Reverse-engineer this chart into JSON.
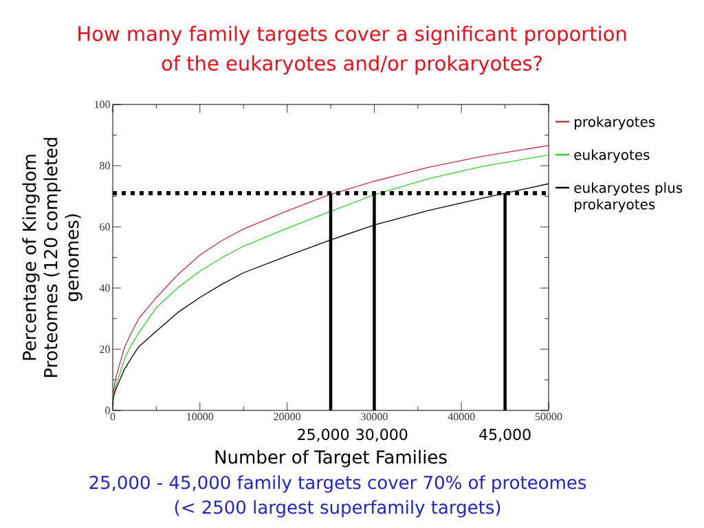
{
  "chart_data": {
    "type": "line",
    "title": "How many family targets cover a significant proportion of the eukaryotes and/or prokaryotes?",
    "xlabel": "Number of Target Families",
    "ylabel": "Percentage of Kingdom Proteomes (120 completed genomes)",
    "x": [
      0,
      80,
      340,
      1330,
      2150,
      2970,
      5000,
      7500,
      10000,
      12500,
      15000,
      20000,
      24740,
      30100,
      36300,
      42300,
      50000
    ],
    "series": [
      {
        "name": "prokaryotes",
        "color": "#c03040",
        "values": [
          3,
          6,
          10.6,
          20.5,
          25.5,
          30.0,
          36.9,
          44.5,
          50.8,
          55.5,
          59.3,
          65.2,
          70.4,
          75.0,
          79.5,
          83.0,
          86.6
        ]
      },
      {
        "name": "eukaryotes",
        "color": "#33cc33",
        "values": [
          2,
          5,
          7.8,
          16.8,
          21.5,
          25.3,
          33.6,
          40.2,
          45.5,
          49.9,
          53.7,
          59.5,
          64.8,
          70.6,
          75.8,
          79.7,
          83.5
        ]
      },
      {
        "name": "eukaryotes plus prokaryotes",
        "color": "#000000",
        "values": [
          1.5,
          4.5,
          6.8,
          13.4,
          17.2,
          20.8,
          25.9,
          32.1,
          36.9,
          41.2,
          45.0,
          50.5,
          55.5,
          60.7,
          65.4,
          69.3,
          74.1
        ]
      }
    ],
    "xlim": [
      0,
      50000
    ],
    "ylim": [
      0,
      100
    ],
    "xticks": [
      0,
      {
        "value": 5000,
        "label": null
      },
      10000,
      {
        "value": 15000,
        "label": null
      },
      20000,
      {
        "value": 25000,
        "label": null
      },
      30000,
      {
        "value": 35000,
        "label": null
      },
      40000,
      {
        "value": 45000,
        "label": null
      },
      50000
    ],
    "yticks": [
      0,
      {
        "value": 10,
        "label": null
      },
      20,
      {
        "value": 30,
        "label": null
      },
      40,
      {
        "value": 50,
        "label": null
      },
      60,
      {
        "value": 70,
        "label": null
      },
      80,
      {
        "value": 90,
        "label": null
      },
      100
    ],
    "ref_lines": [
      {
        "axis": "y",
        "value": 71,
        "line_style": "dotted",
        "color": "#000000"
      },
      {
        "axis": "x",
        "value": 25000,
        "label": "25,000",
        "color": "#000000"
      },
      {
        "axis": "x",
        "value": 30000,
        "label": "30,000",
        "color": "#000000"
      },
      {
        "axis": "x",
        "value": 45000,
        "label": "45,000",
        "color": "#000000"
      }
    ],
    "annotations": [
      "25,000 - 45,000 family targets cover 70% of proteomes",
      "(< 2500 largest superfamily targets)"
    ],
    "legend": "right"
  }
}
